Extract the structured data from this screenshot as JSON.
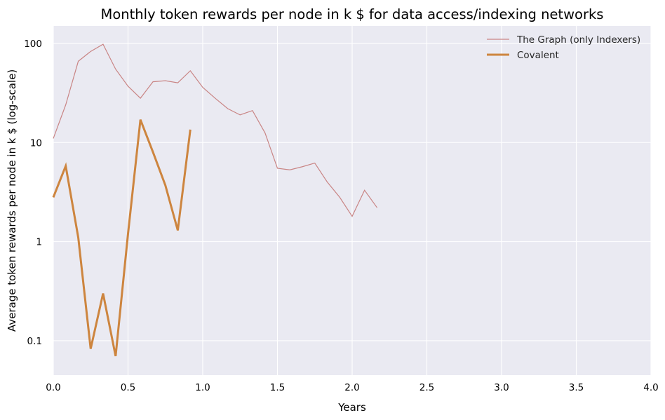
{
  "chart_data": {
    "type": "line",
    "title": "Monthly token rewards per node in k $ for data access/indexing networks",
    "xlabel": "Years",
    "ylabel": "Average token rewards per node in k $ (log-scale)",
    "xlim": [
      0,
      4
    ],
    "ylim": [
      0.045,
      150
    ],
    "yscale": "log",
    "grid": true,
    "legend_position": "top-right",
    "x_ticks": [
      0,
      0.5,
      1,
      1.5,
      2,
      2.5,
      3,
      3.5,
      4
    ],
    "x_tick_labels": [
      "0.0",
      "0.5",
      "1.0",
      "1.5",
      "2.0",
      "2.5",
      "3.0",
      "3.5",
      "4.0"
    ],
    "y_ticks": [
      0.1,
      1,
      10,
      100
    ],
    "y_tick_labels": [
      "0.1",
      "1",
      "10",
      "100"
    ],
    "series": [
      {
        "name": "The Graph (only Indexers)",
        "color": "#c98585",
        "width": 1.2,
        "x": [
          0,
          0.083,
          0.167,
          0.25,
          0.333,
          0.417,
          0.5,
          0.583,
          0.667,
          0.75,
          0.833,
          0.917,
          1.0,
          1.083,
          1.167,
          1.25,
          1.333,
          1.417,
          1.5,
          1.583,
          1.667,
          1.75,
          1.833,
          1.917,
          2.0,
          2.083,
          2.167
        ],
        "y": [
          11,
          24,
          66,
          83,
          98,
          55,
          37,
          28,
          41,
          42,
          40,
          53,
          36,
          28,
          22,
          19,
          21,
          12.5,
          5.5,
          5.3,
          5.7,
          6.2,
          4.0,
          2.8,
          1.8,
          3.3,
          2.2
        ]
      },
      {
        "name": "Covalent",
        "color": "#cd853f",
        "width": 3,
        "x": [
          0,
          0.083,
          0.167,
          0.25,
          0.333,
          0.417,
          0.5,
          0.583,
          0.667,
          0.75,
          0.833,
          0.917
        ],
        "y": [
          2.8,
          5.8,
          1.1,
          0.083,
          0.3,
          0.07,
          1.2,
          17,
          8,
          3.7,
          1.3,
          13.5
        ]
      }
    ]
  }
}
